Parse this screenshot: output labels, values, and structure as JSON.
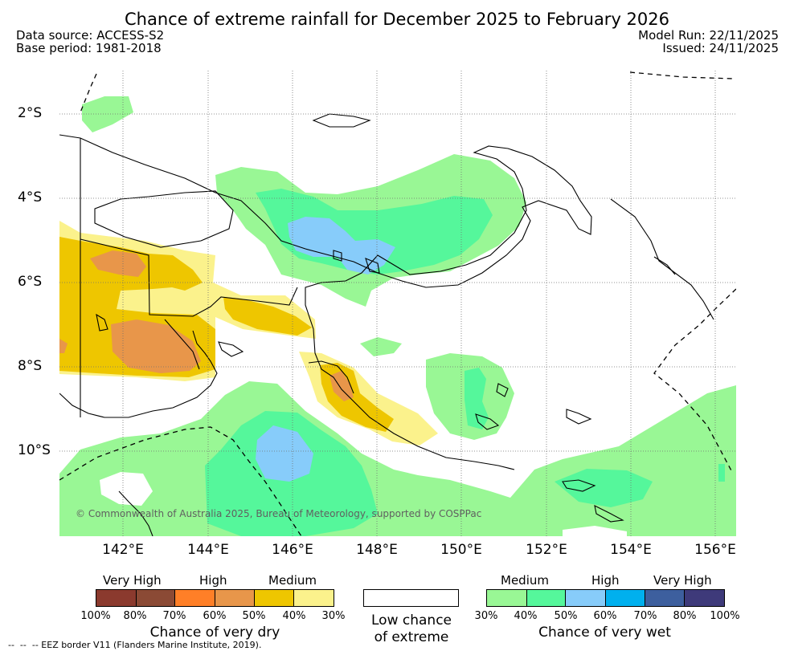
{
  "header": {
    "title": "Chance of extreme rainfall for December 2025 to February 2026",
    "data_source": "Data source: ACCESS-S2",
    "base_period": "Base period: 1981-2018",
    "model_run": "Model Run: 22/11/2025",
    "issued": "Issued: 24/11/2025"
  },
  "axes": {
    "lat_labels": [
      "2°S",
      "4°S",
      "6°S",
      "8°S",
      "10°S"
    ],
    "lon_labels": [
      "142°E",
      "144°E",
      "146°E",
      "148°E",
      "150°E",
      "152°E",
      "154°E",
      "156°E"
    ]
  },
  "map": {
    "copyright": "© Commonwealth of Australia 2025, Bureau of Meteorology, supported by COSPPac"
  },
  "legend": {
    "dry": {
      "headings": [
        "Very High",
        "High",
        "Medium"
      ],
      "colors": [
        "#8b3a2e",
        "#8b4a35",
        "#ff7f27",
        "#e8964a",
        "#eec600",
        "#fbf28c"
      ],
      "ticks": [
        "100%",
        "80%",
        "70%",
        "60%",
        "50%",
        "40%",
        "30%"
      ],
      "caption": "Chance of very dry"
    },
    "low": {
      "color": "#ffffff",
      "caption_line1": "Low chance",
      "caption_line2": "of extreme"
    },
    "wet": {
      "headings": [
        "Medium",
        "High",
        "Very High"
      ],
      "colors": [
        "#99f795",
        "#55f79b",
        "#87ccfa",
        "#00b0ee",
        "#3d5f9e",
        "#3e3a7a"
      ],
      "ticks": [
        "30%",
        "40%",
        "50%",
        "60%",
        "70%",
        "80%",
        "100%"
      ],
      "caption": "Chance of very wet"
    }
  },
  "footer": {
    "eez_note": "--  --  -- EEZ border V11 (Flanders Marine Institute, 2019)."
  }
}
